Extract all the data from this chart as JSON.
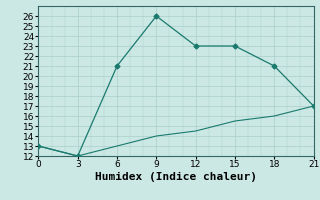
{
  "xlabel": "Humidex (Indice chaleur)",
  "x_ticks": [
    0,
    3,
    6,
    9,
    12,
    15,
    18,
    21
  ],
  "ylim": [
    12,
    27
  ],
  "xlim": [
    0,
    21
  ],
  "y_ticks": [
    12,
    13,
    14,
    15,
    16,
    17,
    18,
    19,
    20,
    21,
    22,
    23,
    24,
    25,
    26
  ],
  "line1_x": [
    0,
    3,
    6,
    9,
    12,
    15,
    18,
    21
  ],
  "line1_y": [
    13,
    12,
    21,
    26,
    23,
    23,
    21,
    17
  ],
  "line2_x": [
    0,
    3,
    6,
    9,
    12,
    15,
    18,
    21
  ],
  "line2_y": [
    13,
    12,
    13,
    14,
    14.5,
    15.5,
    16,
    17
  ],
  "line_color": "#1a7a6e",
  "bg_color": "#cce8e4",
  "grid_color_major": "#aacfca",
  "tick_fontsize": 6.5,
  "xlabel_fontsize": 8,
  "marker": "D",
  "marker_size": 2.5
}
